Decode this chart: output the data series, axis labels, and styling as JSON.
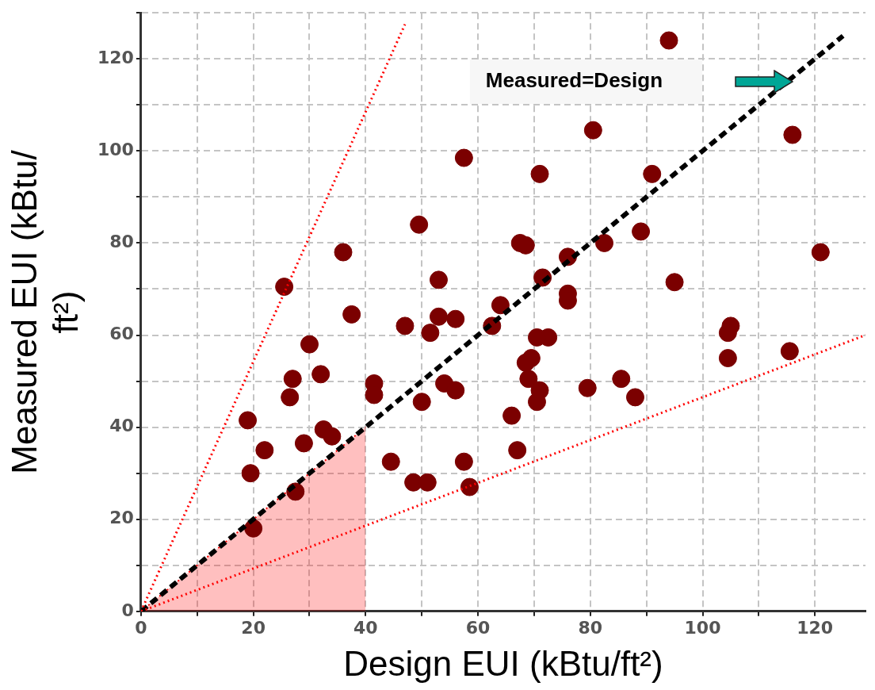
{
  "chart_data": {
    "type": "scatter",
    "xlabel": "Design EUI (kBtu/ft²)",
    "ylabel": "Measured EUI (kBtu/ft²)",
    "xlim": [
      0,
      129
    ],
    "ylim": [
      0,
      130
    ],
    "xticks": [
      0,
      {
        "value": 10,
        "label": null
      },
      20,
      {
        "value": 30,
        "label": null
      },
      40,
      {
        "value": 50,
        "label": null
      },
      60,
      {
        "value": 70,
        "label": null
      },
      80,
      {
        "value": 90,
        "label": null
      },
      100,
      {
        "value": 110,
        "label": null
      },
      120
    ],
    "yticks": [
      0,
      {
        "value": 10,
        "label": null
      },
      20,
      {
        "value": 30,
        "label": null
      },
      40,
      {
        "value": 50,
        "label": null
      },
      60,
      {
        "value": 70,
        "label": null
      },
      80,
      {
        "value": 90,
        "label": null
      },
      100,
      {
        "value": 110,
        "label": null
      },
      120,
      {
        "value": 130,
        "label": null
      }
    ],
    "grid": true,
    "legend": false,
    "annotations": [
      "Measured=Design"
    ],
    "series": [
      {
        "type": "area",
        "color": "#ff0000",
        "x": [
          0,
          40
        ],
        "values": [
          0,
          40
        ]
      },
      {
        "type": "line",
        "color": "#ff0000",
        "line_style": "dotted",
        "x": [
          0,
          47
        ],
        "values": [
          0,
          127.5
        ]
      },
      {
        "type": "line",
        "color": "#ff0000",
        "line_style": "dotted",
        "x": [
          0,
          129
        ],
        "values": [
          0,
          60
        ]
      },
      {
        "color": "#7b0000",
        "marker": "circle",
        "x": [
          94,
          116,
          80.5,
          57.5,
          71,
          91,
          49.5,
          89,
          67.5,
          68.5,
          82.5,
          76,
          121,
          36,
          53,
          71.5,
          95,
          25.5,
          76,
          76,
          64,
          37.5,
          62.5,
          53,
          56,
          47,
          51.5,
          105,
          104.5,
          72.5,
          70.5,
          30,
          69.5,
          68.5,
          104.5,
          115.5,
          32,
          27,
          26.5,
          41.5,
          41.5,
          54,
          56,
          50,
          69,
          71,
          70.5,
          79.5,
          85.5,
          88,
          66,
          67,
          19,
          22,
          19.5,
          29,
          32.5,
          34,
          27.5,
          20,
          44.5,
          48.5,
          51,
          57.5,
          58.5
        ],
        "values": [
          124,
          103.5,
          104.5,
          98.5,
          95,
          95,
          84,
          82.5,
          80,
          79.5,
          80,
          77,
          78,
          78,
          72,
          72.5,
          71.5,
          70.5,
          69,
          67.5,
          66.5,
          64.5,
          62,
          64,
          63.5,
          62,
          60.5,
          62,
          60.5,
          59.5,
          59.5,
          58,
          55,
          54,
          55,
          56.5,
          51.5,
          50.5,
          46.5,
          49.5,
          47,
          49.5,
          48,
          45.5,
          50.5,
          48,
          45.5,
          48.5,
          50.5,
          46.5,
          42.5,
          35,
          41.5,
          35,
          30,
          36.5,
          39.5,
          38,
          26,
          18,
          32.5,
          28,
          28,
          32.5,
          27
        ]
      },
      {
        "type": "line",
        "color": "#000000",
        "line_style": "dashed",
        "x": [
          0,
          125
        ],
        "values": [
          0,
          125
        ]
      }
    ]
  }
}
